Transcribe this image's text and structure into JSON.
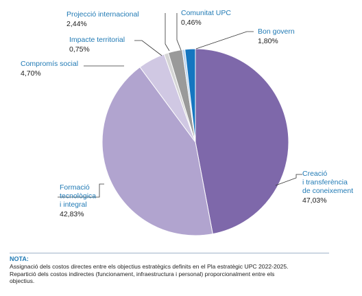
{
  "chart_data": {
    "type": "pie",
    "title": "",
    "slices": [
      {
        "name": "Creació\ni transferència\nde coneixement",
        "value": 47.03,
        "label": "47,03%",
        "color": "#7e68aa"
      },
      {
        "name": "Formació\ntecnològica\ni integral",
        "value": 42.83,
        "label": "42,83%",
        "color": "#b1a4cf"
      },
      {
        "name": "Compromís social",
        "value": 4.7,
        "label": "4,70%",
        "color": "#d0c8e3"
      },
      {
        "name": "Impacte territorial",
        "value": 0.75,
        "label": "0,75%",
        "color": "#d5d5d5"
      },
      {
        "name": "Projecció internacional",
        "value": 2.44,
        "label": "2,44%",
        "color": "#9a9a9a"
      },
      {
        "name": "Comunitat UPC",
        "value": 0.46,
        "label": "0,46%",
        "color": "#bcd4ee"
      },
      {
        "name": "Bon govern",
        "value": 1.8,
        "label": "1,80%",
        "color": "#1576c0"
      }
    ],
    "start_angle_deg": 0,
    "direction": "clockwise"
  },
  "note": {
    "title": "NOTA:",
    "lines": [
      "Assignació dels costos directes entre els objectius estratègics definits en el Pla estratègic UPC 2022-2025.",
      "Repartició dels costos indirectes (funcionament, infraestructura i personal) proporcionalment entre els",
      "objectius."
    ]
  }
}
